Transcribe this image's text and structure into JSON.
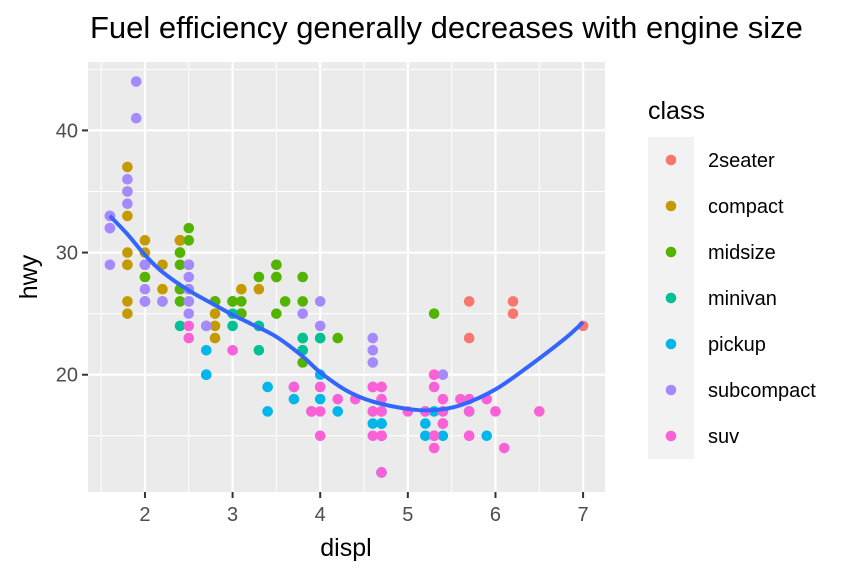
{
  "chart_data": {
    "type": "scatter",
    "title": "Fuel efficiency generally decreases with engine size",
    "xlabel": "displ",
    "ylabel": "hwy",
    "xlim": [
      1.35,
      7.25
    ],
    "ylim": [
      10.4,
      45.6
    ],
    "x_ticks": [
      2,
      3,
      4,
      5,
      6,
      7
    ],
    "y_ticks": [
      20,
      30,
      40
    ],
    "grid": true,
    "legend": {
      "title": "class",
      "placement": "right"
    },
    "series": [
      {
        "name": "2seater",
        "color": "#F8766D",
        "points": [
          [
            5.7,
            26
          ],
          [
            5.7,
            23
          ],
          [
            6.2,
            26
          ],
          [
            6.2,
            25
          ],
          [
            7.0,
            24
          ]
        ]
      },
      {
        "name": "compact",
        "color": "#C49A00",
        "points": [
          [
            1.8,
            29
          ],
          [
            1.8,
            29
          ],
          [
            2.0,
            31
          ],
          [
            2.0,
            30
          ],
          [
            2.8,
            26
          ],
          [
            2.8,
            26
          ],
          [
            3.1,
            27
          ],
          [
            1.8,
            26
          ],
          [
            1.8,
            25
          ],
          [
            2.0,
            28
          ],
          [
            2.0,
            29
          ],
          [
            2.8,
            24
          ],
          [
            2.8,
            25
          ],
          [
            3.1,
            25
          ],
          [
            3.1,
            25
          ],
          [
            2.2,
            26
          ],
          [
            2.2,
            27
          ],
          [
            2.4,
            31
          ],
          [
            2.4,
            31
          ],
          [
            3.0,
            26
          ],
          [
            3.0,
            26
          ],
          [
            3.3,
            27
          ],
          [
            2.5,
            29
          ],
          [
            2.5,
            29
          ],
          [
            2.4,
            27
          ],
          [
            2.4,
            30
          ],
          [
            2.5,
            26
          ],
          [
            2.5,
            27
          ],
          [
            1.8,
            33
          ],
          [
            1.8,
            35
          ],
          [
            1.8,
            37
          ],
          [
            1.8,
            30
          ],
          [
            2.0,
            29
          ],
          [
            2.0,
            26
          ],
          [
            2.8,
            23
          ],
          [
            2.2,
            29
          ],
          [
            2.4,
            31
          ]
        ]
      },
      {
        "name": "midsize",
        "color": "#53B400",
        "points": [
          [
            2.4,
            27
          ],
          [
            2.4,
            30
          ],
          [
            3.1,
            26
          ],
          [
            3.5,
            29
          ],
          [
            3.6,
            26
          ],
          [
            2.4,
            26
          ],
          [
            3.0,
            26
          ],
          [
            3.3,
            28
          ],
          [
            3.3,
            28
          ],
          [
            3.5,
            28
          ],
          [
            3.5,
            28
          ],
          [
            3.8,
            28
          ],
          [
            3.8,
            26
          ],
          [
            3.8,
            23
          ],
          [
            5.3,
            25
          ],
          [
            2.5,
            32
          ],
          [
            2.5,
            31
          ],
          [
            2.5,
            27
          ],
          [
            3.5,
            25
          ],
          [
            2.8,
            26
          ],
          [
            3.1,
            25
          ],
          [
            2.7,
            24
          ],
          [
            3.5,
            29
          ],
          [
            3.0,
            26
          ],
          [
            4.0,
            23
          ],
          [
            4.2,
            23
          ],
          [
            2.0,
            28
          ],
          [
            2.0,
            29
          ],
          [
            3.1,
            25
          ],
          [
            3.8,
            21
          ],
          [
            3.8,
            22
          ],
          [
            2.4,
            29
          ]
        ]
      },
      {
        "name": "minivan",
        "color": "#00C094",
        "points": [
          [
            2.4,
            24
          ],
          [
            3.0,
            24
          ],
          [
            3.3,
            22
          ],
          [
            3.3,
            24
          ],
          [
            3.3,
            24
          ],
          [
            3.8,
            23
          ],
          [
            3.8,
            22
          ],
          [
            4.0,
            23
          ],
          [
            3.0,
            25
          ]
        ]
      },
      {
        "name": "pickup",
        "color": "#00B6EB",
        "points": [
          [
            2.7,
            20
          ],
          [
            2.7,
            20
          ],
          [
            2.7,
            22
          ],
          [
            3.4,
            19
          ],
          [
            3.4,
            17
          ],
          [
            3.7,
            18
          ],
          [
            3.9,
            17
          ],
          [
            4.0,
            18
          ],
          [
            4.0,
            20
          ],
          [
            4.2,
            17
          ],
          [
            4.6,
            17
          ],
          [
            4.6,
            16
          ],
          [
            4.7,
            16
          ],
          [
            4.7,
            15
          ],
          [
            4.7,
            16
          ],
          [
            4.7,
            15
          ],
          [
            5.2,
            17
          ],
          [
            5.2,
            15
          ],
          [
            5.2,
            16
          ],
          [
            5.4,
            16
          ],
          [
            5.4,
            17
          ],
          [
            5.7,
            17
          ],
          [
            5.9,
            15
          ],
          [
            5.3,
            15
          ],
          [
            5.4,
            15
          ],
          [
            4.7,
            12
          ],
          [
            4.7,
            12
          ],
          [
            4.0,
            19
          ],
          [
            3.7,
            19
          ],
          [
            4.7,
            17
          ],
          [
            4.7,
            16
          ],
          [
            5.7,
            17
          ],
          [
            5.3,
            17
          ]
        ]
      },
      {
        "name": "subcompact",
        "color": "#A58AFF",
        "points": [
          [
            1.9,
            44
          ],
          [
            1.9,
            41
          ],
          [
            1.6,
            33
          ],
          [
            1.6,
            32
          ],
          [
            1.6,
            32
          ],
          [
            1.8,
            34
          ],
          [
            1.8,
            36
          ],
          [
            1.6,
            29
          ],
          [
            2.0,
            27
          ],
          [
            2.0,
            26
          ],
          [
            2.5,
            26
          ],
          [
            2.5,
            29
          ],
          [
            2.2,
            26
          ],
          [
            2.5,
            28
          ],
          [
            2.7,
            24
          ],
          [
            2.0,
            29
          ],
          [
            3.8,
            25
          ],
          [
            4.0,
            26
          ],
          [
            4.0,
            24
          ],
          [
            4.6,
            23
          ],
          [
            4.6,
            22
          ],
          [
            4.6,
            21
          ],
          [
            5.4,
            20
          ],
          [
            2.5,
            27
          ],
          [
            2.5,
            25
          ],
          [
            2.5,
            29
          ],
          [
            1.8,
            35
          ],
          [
            2.0,
            26
          ],
          [
            1.6,
            33
          ]
        ]
      },
      {
        "name": "suv",
        "color": "#FB61D7",
        "points": [
          [
            5.3,
            20
          ],
          [
            5.3,
            15
          ],
          [
            5.3,
            20
          ],
          [
            5.7,
            17
          ],
          [
            6.0,
            17
          ],
          [
            5.7,
            15
          ],
          [
            6.5,
            17
          ],
          [
            3.7,
            19
          ],
          [
            4.7,
            18
          ],
          [
            4.7,
            17
          ],
          [
            5.2,
            17
          ],
          [
            5.7,
            18
          ],
          [
            5.9,
            18
          ],
          [
            4.7,
            19
          ],
          [
            4.7,
            15
          ],
          [
            5.6,
            18
          ],
          [
            2.5,
            24
          ],
          [
            2.5,
            23
          ],
          [
            3.0,
            22
          ],
          [
            4.0,
            15
          ],
          [
            4.0,
            17
          ],
          [
            4.2,
            18
          ],
          [
            4.4,
            18
          ],
          [
            4.6,
            19
          ],
          [
            4.6,
            15
          ],
          [
            5.0,
            17
          ],
          [
            5.4,
            17
          ],
          [
            4.6,
            17
          ],
          [
            4.7,
            15
          ],
          [
            4.7,
            12
          ],
          [
            4.0,
            19
          ],
          [
            4.7,
            19
          ],
          [
            4.7,
            15
          ],
          [
            5.3,
            19
          ],
          [
            5.3,
            14
          ],
          [
            6.1,
            14
          ],
          [
            3.9,
            17
          ],
          [
            5.4,
            16
          ],
          [
            5.7,
            15
          ],
          [
            4.6,
            19
          ],
          [
            5.4,
            18
          ],
          [
            5.4,
            16
          ],
          [
            3.9,
            17
          ]
        ]
      }
    ],
    "smooth": {
      "color": "#3366FF",
      "points": [
        [
          1.6,
          33
        ],
        [
          1.8,
          31.5
        ],
        [
          2.0,
          29.8
        ],
        [
          2.2,
          28.4
        ],
        [
          2.5,
          26.9
        ],
        [
          2.8,
          25.7
        ],
        [
          3.0,
          24.9
        ],
        [
          3.2,
          24.2
        ],
        [
          3.5,
          23.1
        ],
        [
          3.8,
          21.5
        ],
        [
          4.0,
          20.2
        ],
        [
          4.3,
          18.7
        ],
        [
          4.6,
          17.8
        ],
        [
          5.0,
          17.2
        ],
        [
          5.3,
          17.1
        ],
        [
          5.6,
          17.5
        ],
        [
          6.0,
          18.8
        ],
        [
          6.4,
          20.8
        ],
        [
          6.8,
          23
        ],
        [
          7.0,
          24.3
        ]
      ]
    }
  }
}
